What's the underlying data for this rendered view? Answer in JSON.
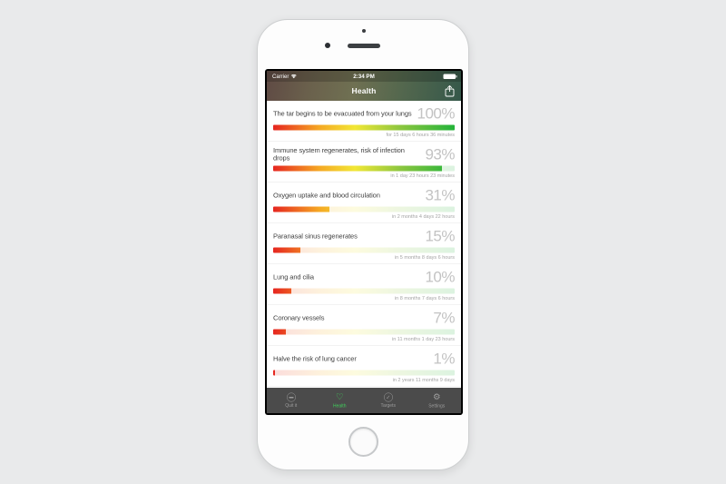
{
  "app": {
    "name_on_screen": "Health"
  },
  "statusbar": {
    "carrier": "Carrier",
    "time": "2:34 PM",
    "battery_icon": "battery-icon",
    "wifi_icon": "wifi-icon"
  },
  "navbar": {
    "title": "Health",
    "share_icon": "share-icon"
  },
  "items": [
    {
      "title": "The tar begins to be evacuated from your lungs",
      "percent_label": "100%",
      "percent": 100,
      "caption": "for 15 days 6 hours 36 minutes"
    },
    {
      "title": "Immune system regenerates, risk of infection drops",
      "percent_label": "93%",
      "percent": 93,
      "caption": "in 1 day 23 hours 23 minutes"
    },
    {
      "title": "Oxygen uptake and blood circulation",
      "percent_label": "31%",
      "percent": 31,
      "caption": "in 2 months 4 days 22 hours"
    },
    {
      "title": "Paranasal sinus regenerates",
      "percent_label": "15%",
      "percent": 15,
      "caption": "in 5 months 8 days 6 hours"
    },
    {
      "title": "Lung and cilia",
      "percent_label": "10%",
      "percent": 10,
      "caption": "in 8 months 7 days 6 hours"
    },
    {
      "title": "Coronary vessels",
      "percent_label": "7%",
      "percent": 7,
      "caption": "in 11 months 1 day 23 hours"
    },
    {
      "title": "Halve the risk of lung cancer",
      "percent_label": "1%",
      "percent": 1,
      "caption": "in 2 years 11 months 9 days"
    }
  ],
  "tabbar": [
    {
      "label": "Quit it",
      "icon": "no-smoking-icon",
      "active": false
    },
    {
      "label": "Health",
      "icon": "heart-icon",
      "active": true
    },
    {
      "label": "Targets",
      "icon": "checkmark-circle-icon",
      "active": false
    },
    {
      "label": "Settings",
      "icon": "gear-icon",
      "active": false
    }
  ],
  "colors": {
    "page_background": "#e9eaeb",
    "bar_gradient": [
      "#e62520",
      "#f5a623",
      "#f2e735",
      "#8cc63f",
      "#23b33a"
    ],
    "active_tab": "#41d05c",
    "tabbar_background": "#4b4b4b",
    "percent_text": "#c3c3c3"
  }
}
